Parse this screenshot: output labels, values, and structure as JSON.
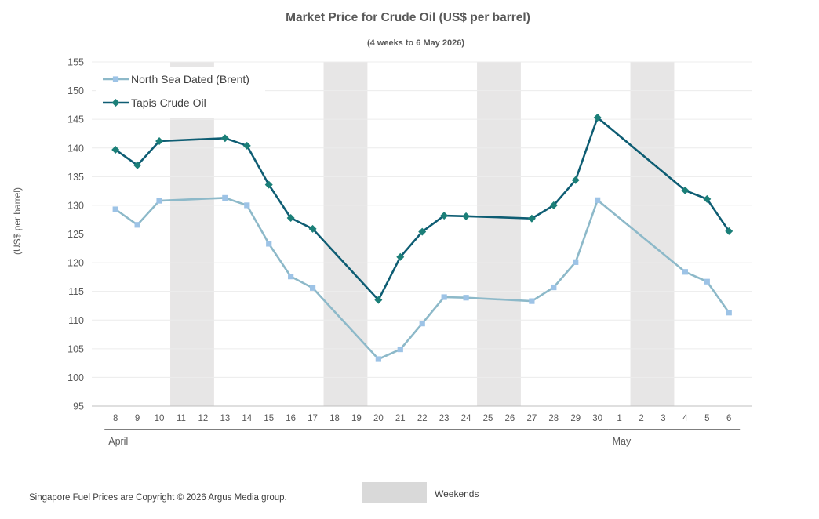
{
  "chart_data": {
    "type": "line",
    "title": "Market Price for Crude Oil (US$ per barrel)",
    "subtitle": "(4 weeks to 6 May 2026)",
    "ylabel": "(US$ per barrel)",
    "ylim": [
      95,
      155
    ],
    "yticks": [
      95,
      100,
      105,
      110,
      115,
      120,
      125,
      130,
      135,
      140,
      145,
      150,
      155
    ],
    "categories": [
      "8",
      "9",
      "10",
      "11",
      "12",
      "13",
      "14",
      "15",
      "16",
      "17",
      "18",
      "19",
      "20",
      "21",
      "22",
      "23",
      "24",
      "25",
      "26",
      "27",
      "28",
      "29",
      "30",
      "1",
      "2",
      "3",
      "4",
      "5",
      "6"
    ],
    "months": [
      {
        "label": "April",
        "start": 0,
        "end": 22
      },
      {
        "label": "May",
        "start": 23,
        "end": 28
      }
    ],
    "weekends": [
      [
        3,
        4
      ],
      [
        10,
        11
      ],
      [
        17,
        18
      ],
      [
        24,
        25
      ]
    ],
    "grid": true,
    "legend_position": "top-left",
    "series": [
      {
        "name": "North Sea Dated (Brent)",
        "color": "#8db9c9",
        "marker_color": "#9dc3e6",
        "marker": "square",
        "values": [
          129.3,
          126.6,
          130.8,
          null,
          null,
          131.3,
          130.0,
          123.3,
          117.6,
          115.6,
          null,
          null,
          103.2,
          104.9,
          109.4,
          114.0,
          113.9,
          null,
          null,
          113.3,
          115.7,
          120.1,
          130.9,
          null,
          null,
          null,
          118.4,
          116.7,
          111.3
        ]
      },
      {
        "name": "Tapis Crude Oil",
        "color": "#0e5d73",
        "marker_color": "#1b7f78",
        "marker": "diamond",
        "values": [
          139.7,
          137.0,
          141.2,
          null,
          null,
          141.7,
          140.4,
          133.6,
          127.8,
          125.9,
          null,
          null,
          113.5,
          121.0,
          125.4,
          128.2,
          128.1,
          null,
          null,
          127.7,
          130.0,
          134.4,
          145.3,
          null,
          null,
          null,
          132.6,
          131.1,
          125.5
        ]
      }
    ],
    "weekend_legend_label": "Weekends"
  },
  "footer": {
    "copyright": "Singapore Fuel Prices are Copyright © 2026 Argus Media group."
  }
}
